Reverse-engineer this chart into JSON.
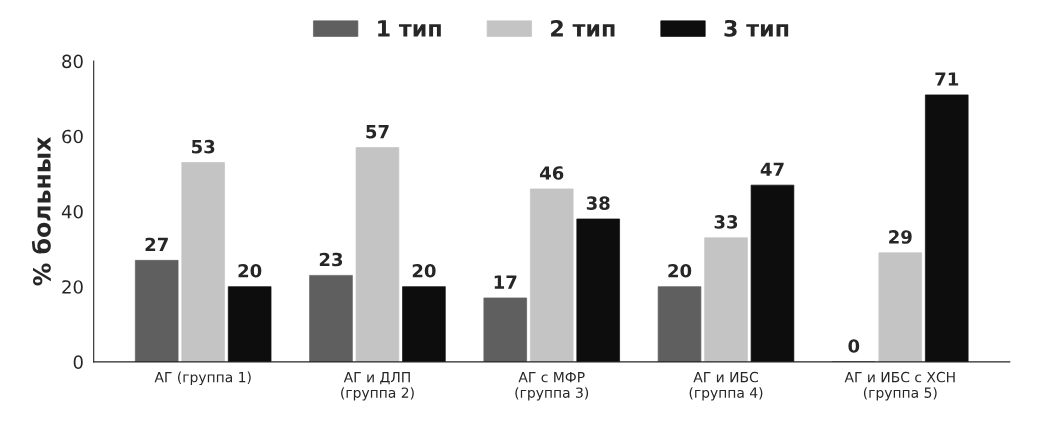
{
  "chart_data": {
    "type": "bar",
    "ylabel": "% больных",
    "categories": [
      "АГ (группа 1)",
      "АГ и ДЛП\n(группа 2)",
      "АГ с МФР\n(группа 3)",
      "АГ и ИБС\n(группа 4)",
      "АГ и ИБС с ХСН\n(группа 5)"
    ],
    "series": [
      {
        "name": "1 тип",
        "color": "#5f5f5f",
        "values": [
          27,
          23,
          17,
          20,
          0
        ]
      },
      {
        "name": "2 тип",
        "color": "#c4c4c4",
        "values": [
          53,
          57,
          46,
          33,
          29
        ]
      },
      {
        "name": "3 тип",
        "color": "#0d0d0d",
        "values": [
          20,
          20,
          38,
          47,
          71
        ]
      }
    ],
    "ylim": [
      0,
      80
    ],
    "yticks": [
      0,
      20,
      40,
      60,
      80
    ],
    "grid": false,
    "legend": "top",
    "data_labels": true
  }
}
